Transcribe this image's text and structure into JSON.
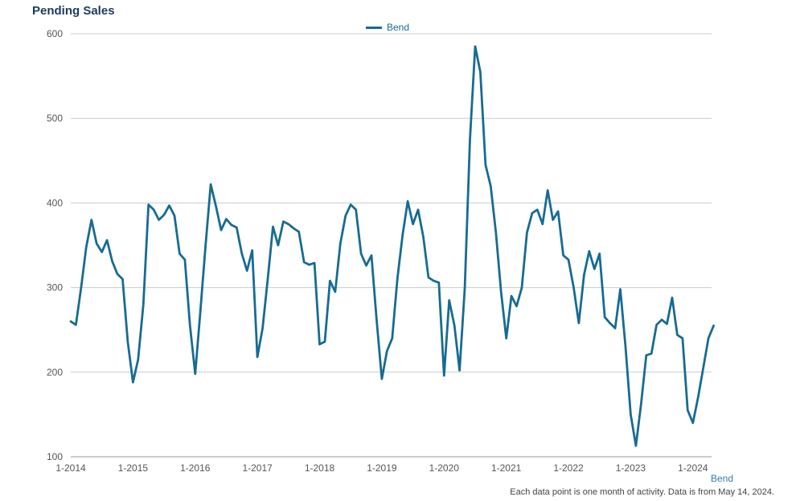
{
  "title": "Pending Sales",
  "legend": {
    "label": "Bend"
  },
  "footer": {
    "series_label": "Bend",
    "note": "Each data point is one month of activity. Data is from May 14, 2024."
  },
  "colors": {
    "line": "#176b93",
    "title": "#1e3a5f",
    "grid": "#cccccc",
    "axis": "#999999",
    "axis_text": "#555555",
    "footnote_link": "#2e7cb5"
  },
  "chart_data": {
    "type": "line",
    "title": "Pending Sales",
    "xlabel": "",
    "ylabel": "",
    "ylim": [
      100,
      600
    ],
    "y_ticks": [
      100,
      200,
      300,
      400,
      500,
      600
    ],
    "x_tick_labels": [
      "1-2014",
      "1-2015",
      "1-2016",
      "1-2017",
      "1-2018",
      "1-2019",
      "1-2020",
      "1-2021",
      "1-2022",
      "1-2023",
      "1-2024"
    ],
    "x_unit": "month",
    "grid": "horizontal",
    "legend_position": "top-center",
    "series": [
      {
        "name": "Bend",
        "color": "#176b93",
        "values": [
          260,
          256,
          300,
          348,
          380,
          352,
          342,
          356,
          331,
          316,
          310,
          236,
          188,
          215,
          280,
          398,
          392,
          380,
          386,
          397,
          385,
          340,
          333,
          255,
          198,
          272,
          350,
          422,
          396,
          368,
          381,
          374,
          371,
          340,
          320,
          344,
          218,
          252,
          310,
          372,
          350,
          378,
          375,
          370,
          366,
          330,
          327,
          329,
          233,
          236,
          308,
          295,
          352,
          385,
          398,
          392,
          340,
          326,
          338,
          262,
          192,
          225,
          240,
          310,
          362,
          402,
          375,
          392,
          360,
          312,
          308,
          306,
          196,
          285,
          255,
          202,
          300,
          475,
          585,
          555,
          445,
          420,
          365,
          295,
          240,
          290,
          278,
          300,
          365,
          388,
          392,
          375,
          415,
          380,
          390,
          338,
          333,
          300,
          258,
          315,
          343,
          322,
          340,
          265,
          258,
          252,
          298,
          230,
          150,
          113,
          162,
          220,
          222,
          256,
          262,
          257,
          288,
          244,
          240,
          155,
          140,
          170,
          205,
          240,
          255
        ]
      }
    ]
  }
}
